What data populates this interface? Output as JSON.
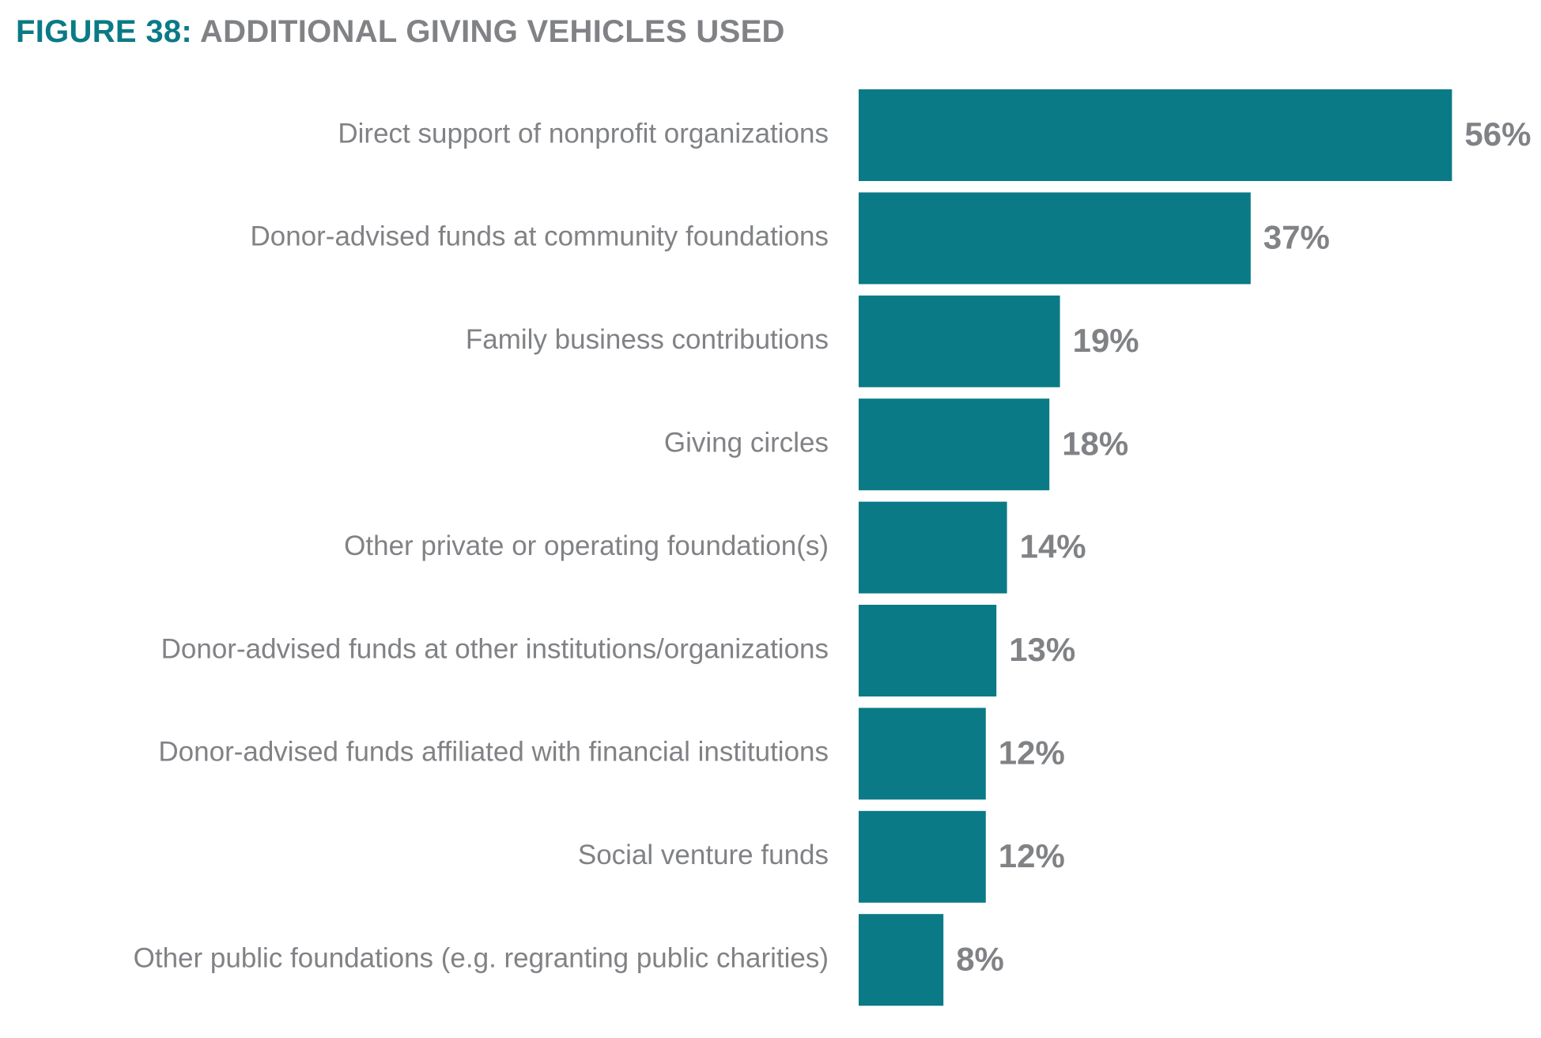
{
  "figure": {
    "number": "FIGURE 38:",
    "title": "ADDITIONAL GIVING VEHICLES USED"
  },
  "colors": {
    "bar": "#0a7a86",
    "title_accent": "#0a7a86",
    "text": "#808285"
  },
  "chart_data": {
    "type": "bar",
    "orientation": "horizontal",
    "title": "ADDITIONAL GIVING VEHICLES USED",
    "xlabel": "",
    "ylabel": "",
    "grid": false,
    "legend": "none",
    "xlim": [
      0,
      56
    ],
    "categories": [
      "Direct support of nonprofit organizations",
      "Donor-advised funds at community foundations",
      "Family business contributions",
      "Giving circles",
      "Other private or operating foundation(s)",
      "Donor-advised funds at other institutions/organizations",
      "Donor-advised funds affiliated with financial institutions",
      "Social venture funds",
      "Other public foundations (e.g. regranting public charities)"
    ],
    "values": [
      56,
      37,
      19,
      18,
      14,
      13,
      12,
      12,
      8
    ],
    "value_labels": [
      "56%",
      "37%",
      "19%",
      "18%",
      "14%",
      "13%",
      "12%",
      "12%",
      "8%"
    ]
  }
}
